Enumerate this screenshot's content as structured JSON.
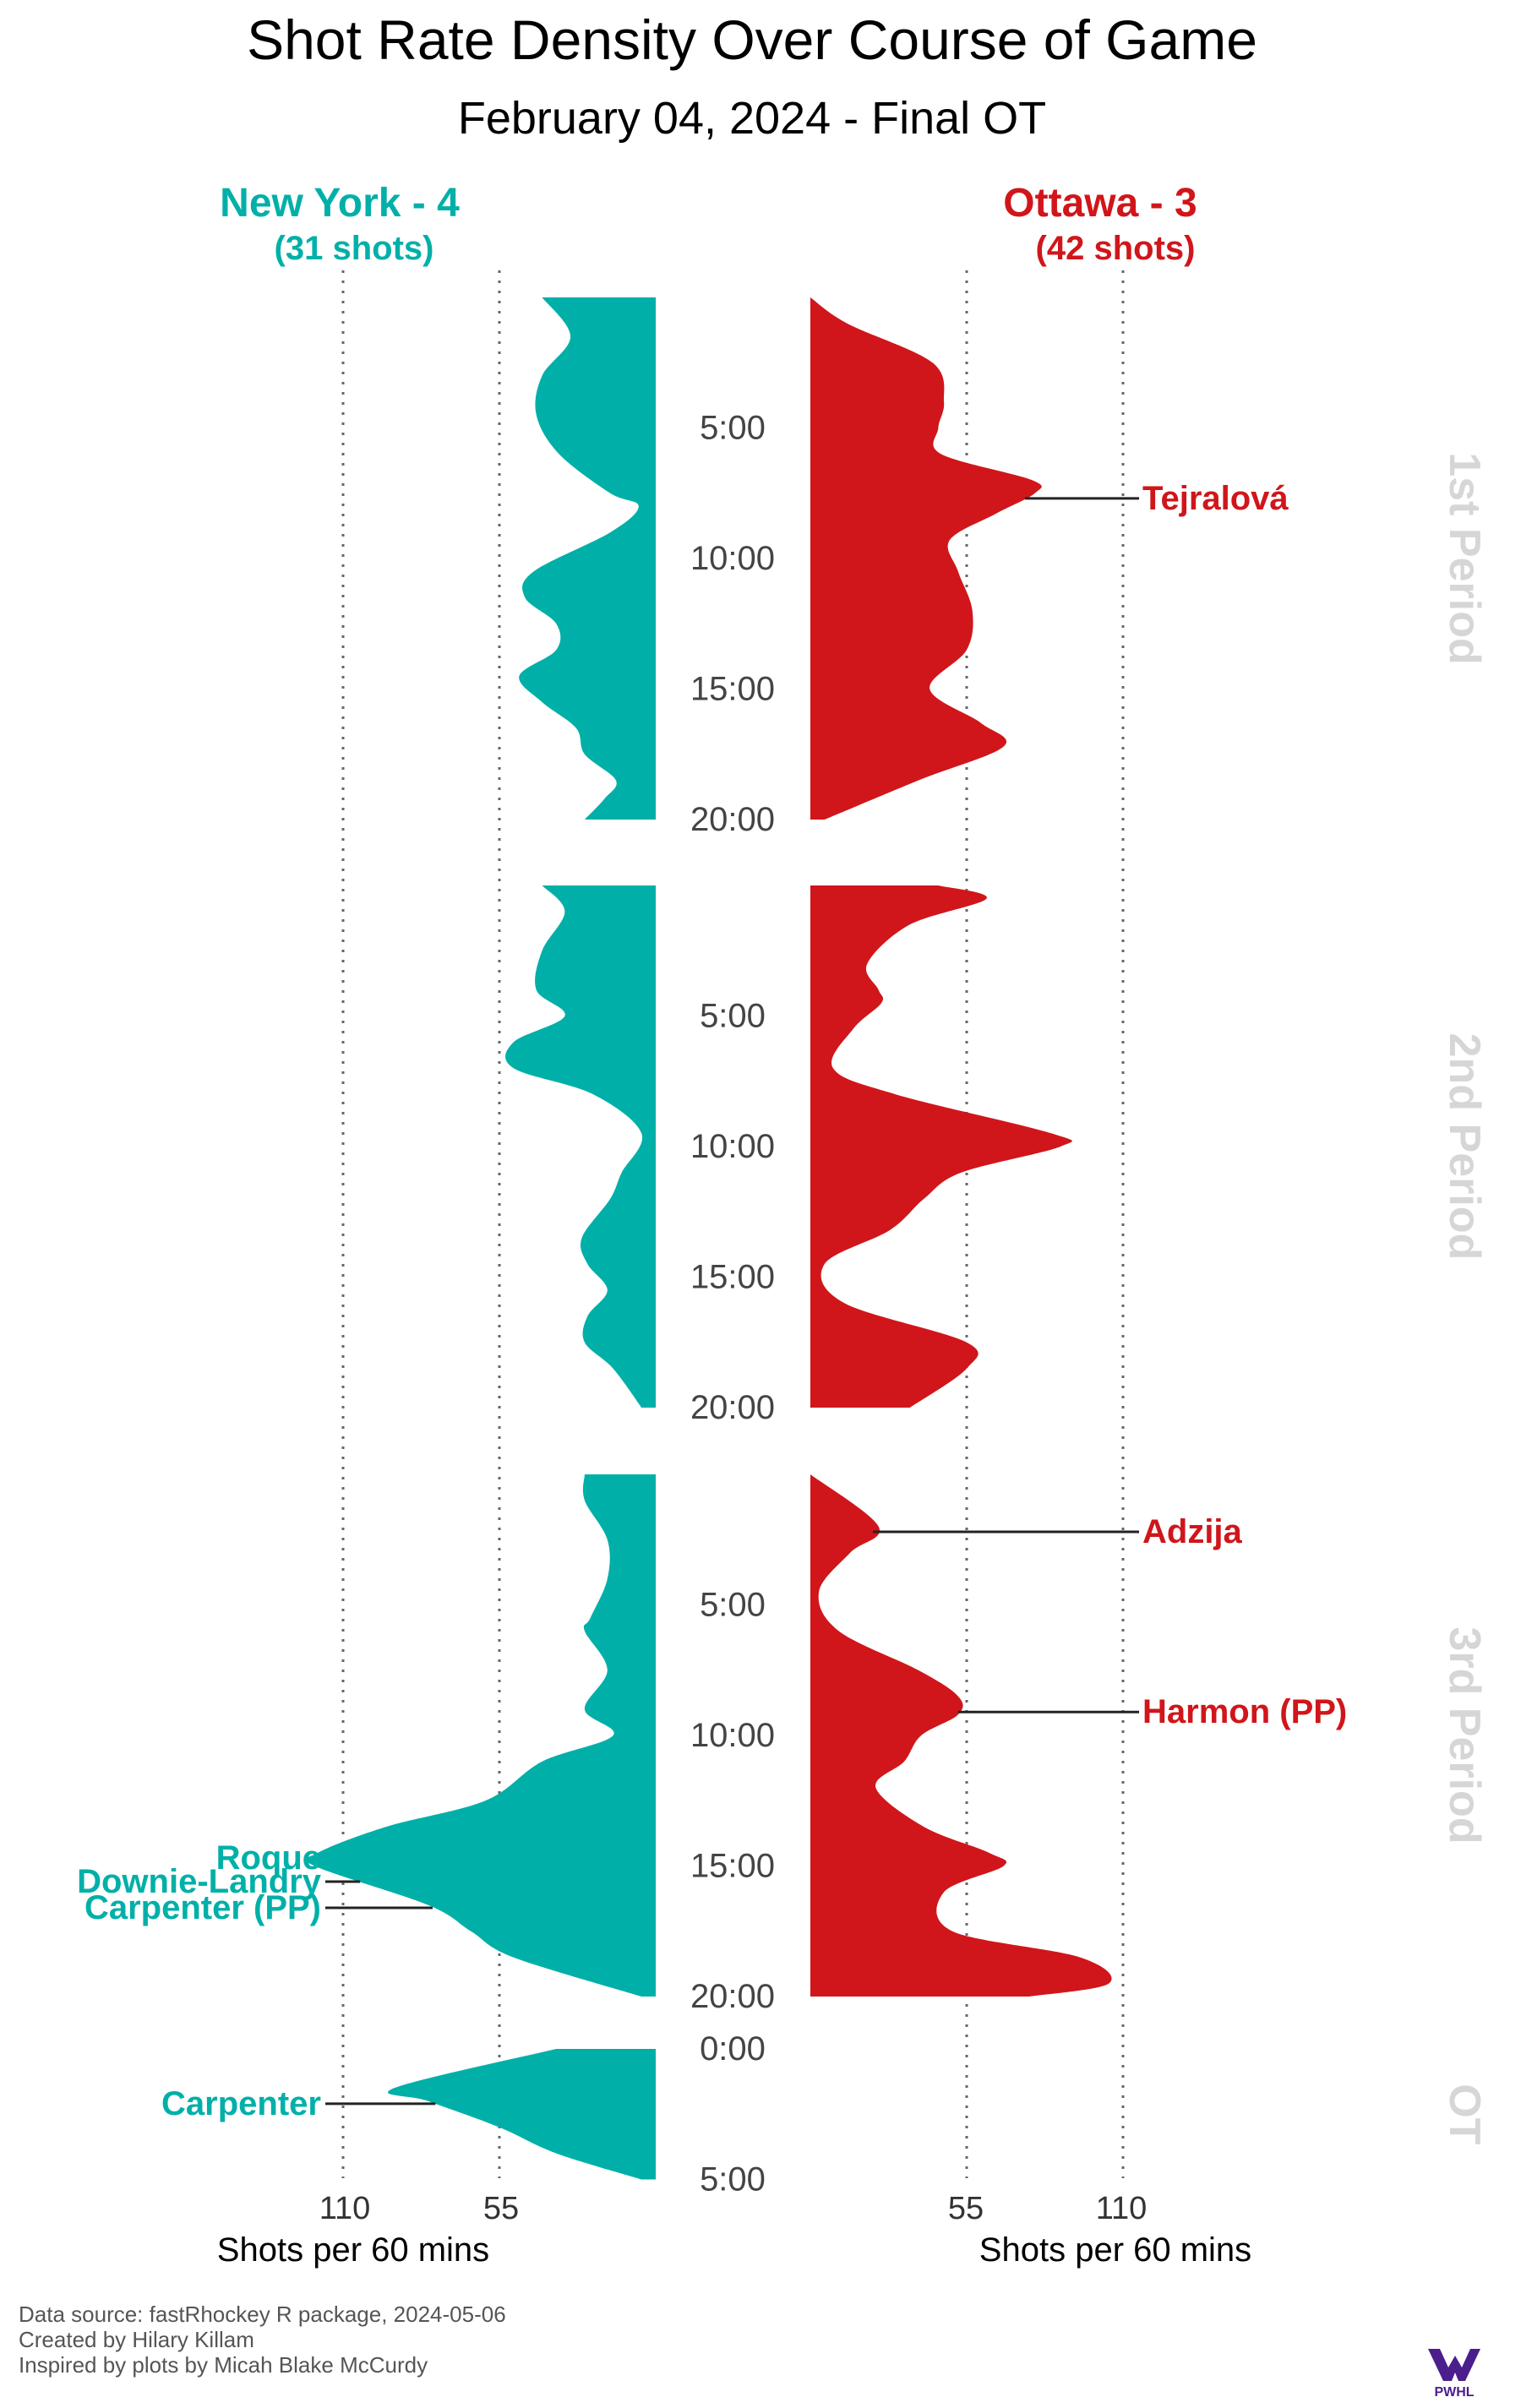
{
  "title": "Shot Rate Density Over Course of Game",
  "subtitle": "February 04, 2024 - Final OT",
  "teams": {
    "left": {
      "label": "New York - 4",
      "shots": "(31 shots)",
      "color": "#00B0A8"
    },
    "right": {
      "label": "Ottawa - 3",
      "shots": "(42 shots)",
      "color": "#D0161A"
    }
  },
  "period_labels": [
    "1st Period",
    "2nd Period",
    "3rd Period",
    "OT"
  ],
  "axis": {
    "title": "Shots per 60 mins",
    "ticks_left": [
      "110",
      "55"
    ],
    "ticks_right": [
      "55",
      "110"
    ]
  },
  "footer": {
    "source": "Data source: fastRhockey R package, 2024-05-06",
    "created": "Created by Hilary Killam",
    "inspired": "Inspired by plots by Micah Blake McCurdy"
  },
  "logo": {
    "text": "PWHL",
    "icon": "pwhl-logo",
    "color": "#4B1E8C"
  },
  "chart_data": {
    "type": "area",
    "x_unit": "minutes elapsed in period",
    "y_unit": "shots per 60 minutes",
    "ylim": [
      0,
      110
    ],
    "grid": "vertical dotted lines at 55 and 110",
    "periods": [
      {
        "name": "1st Period",
        "length": 20,
        "tick_labels": [
          "5:00",
          "10:00",
          "15:00",
          "20:00"
        ],
        "series": [
          {
            "team": "New York",
            "points": [
              [
                0,
                40
              ],
              [
                1.5,
                30
              ],
              [
                3,
                40
              ],
              [
                4.5,
                42
              ],
              [
                6,
                34
              ],
              [
                7.5,
                16
              ],
              [
                8,
                6
              ],
              [
                9,
                16
              ],
              [
                10.5,
                43
              ],
              [
                11.5,
                46
              ],
              [
                12.5,
                35
              ],
              [
                13.5,
                35
              ],
              [
                14.5,
                48
              ],
              [
                15.5,
                40
              ],
              [
                16.5,
                28
              ],
              [
                17.5,
                25
              ],
              [
                18.5,
                14
              ],
              [
                19.2,
                18
              ],
              [
                20,
                25
              ]
            ]
          },
          {
            "team": "Ottawa",
            "points": [
              [
                0,
                0
              ],
              [
                1,
                13
              ],
              [
                2.5,
                43
              ],
              [
                4,
                47
              ],
              [
                5,
                45
              ],
              [
                6,
                46
              ],
              [
                7,
                78
              ],
              [
                7.5,
                79
              ],
              [
                8.3,
                65
              ],
              [
                9.3,
                49
              ],
              [
                10.5,
                52
              ],
              [
                12,
                57
              ],
              [
                13.5,
                55
              ],
              [
                15,
                42
              ],
              [
                16.3,
                60
              ],
              [
                17.2,
                68
              ],
              [
                18.5,
                38
              ],
              [
                20,
                5
              ]
            ]
          }
        ]
      },
      {
        "name": "2nd Period",
        "length": 20,
        "tick_labels": [
          "5:00",
          "10:00",
          "15:00",
          "20:00"
        ],
        "series": [
          {
            "team": "New York",
            "points": [
              [
                0,
                40
              ],
              [
                1,
                32
              ],
              [
                2.5,
                40
              ],
              [
                4,
                42
              ],
              [
                5,
                32
              ],
              [
                6,
                50
              ],
              [
                7,
                50
              ],
              [
                8,
                22
              ],
              [
                9.5,
                5
              ],
              [
                11,
                12
              ],
              [
                12,
                16
              ],
              [
                13.5,
                26
              ],
              [
                14.5,
                24
              ],
              [
                15.5,
                17
              ],
              [
                16.5,
                24
              ],
              [
                17.5,
                25
              ],
              [
                18.5,
                15
              ],
              [
                20,
                5
              ]
            ]
          },
          {
            "team": "Ottawa",
            "points": [
              [
                0,
                45
              ],
              [
                0.5,
                62
              ],
              [
                1.5,
                35
              ],
              [
                3,
                20
              ],
              [
                4,
                24
              ],
              [
                4.5,
                25
              ],
              [
                5.5,
                15
              ],
              [
                7,
                8
              ],
              [
                8,
                30
              ],
              [
                9.5,
                85
              ],
              [
                10,
                88
              ],
              [
                11,
                53
              ],
              [
                12,
                40
              ],
              [
                13.2,
                28
              ],
              [
                14.5,
                5
              ],
              [
                16,
                12
              ],
              [
                17.5,
                55
              ],
              [
                18.5,
                55
              ],
              [
                20,
                35
              ]
            ]
          }
        ]
      },
      {
        "name": "3rd Period",
        "length": 20,
        "tick_labels": [
          "5:00",
          "10:00",
          "15:00",
          "20:00"
        ],
        "series": [
          {
            "team": "New York",
            "points": [
              [
                0,
                25
              ],
              [
                1,
                25
              ],
              [
                2.5,
                17
              ],
              [
                4,
                17
              ],
              [
                5.5,
                23
              ],
              [
                6,
                25
              ],
              [
                7.5,
                17
              ],
              [
                9,
                25
              ],
              [
                10,
                15
              ],
              [
                11,
                40
              ],
              [
                12.5,
                60
              ],
              [
                13.5,
                95
              ],
              [
                14.5,
                119
              ],
              [
                15,
                120
              ],
              [
                16.5,
                80
              ],
              [
                17.5,
                65
              ],
              [
                18.5,
                50
              ],
              [
                20,
                5
              ]
            ]
          },
          {
            "team": "Ottawa",
            "points": [
              [
                0,
                0
              ],
              [
                2,
                24
              ],
              [
                3,
                14
              ],
              [
                4.5,
                3
              ],
              [
                6,
                10
              ],
              [
                7.5,
                38
              ],
              [
                8.5,
                52
              ],
              [
                9.2,
                52
              ],
              [
                10,
                39
              ],
              [
                11,
                33
              ],
              [
                12,
                23
              ],
              [
                13.5,
                40
              ],
              [
                14.5,
                63
              ],
              [
                15,
                68
              ],
              [
                16,
                47
              ],
              [
                17.5,
                50
              ],
              [
                18.5,
                95
              ],
              [
                19.5,
                105
              ],
              [
                20,
                77
              ]
            ]
          }
        ]
      },
      {
        "name": "OT",
        "length": 5,
        "tick_labels": [
          "0:00",
          "5:00"
        ],
        "series": [
          {
            "team": "New York",
            "points": [
              [
                0,
                35
              ],
              [
                1.5,
                92
              ],
              [
                2,
                80
              ],
              [
                3,
                55
              ],
              [
                4,
                35
              ],
              [
                5,
                5
              ]
            ]
          }
        ]
      }
    ],
    "goals": [
      {
        "team": "Ottawa",
        "scorer": "Tejralová",
        "period": 1,
        "time": 7.7
      },
      {
        "team": "Ottawa",
        "scorer": "Adzija",
        "period": 3,
        "time": 2.2
      },
      {
        "team": "Ottawa",
        "scorer": "Harmon (PP)",
        "period": 3,
        "time": 9.1
      },
      {
        "team": "New York",
        "scorer": "Roque",
        "period": 3,
        "time": 14.7
      },
      {
        "team": "New York",
        "scorer": "Downie-Landry",
        "period": 3,
        "time": 15.6
      },
      {
        "team": "New York",
        "scorer": "Carpenter (PP)",
        "period": 3,
        "time": 16.6
      },
      {
        "team": "New York",
        "scorer": "Carpenter",
        "period": 4,
        "time": 2.1
      }
    ]
  }
}
